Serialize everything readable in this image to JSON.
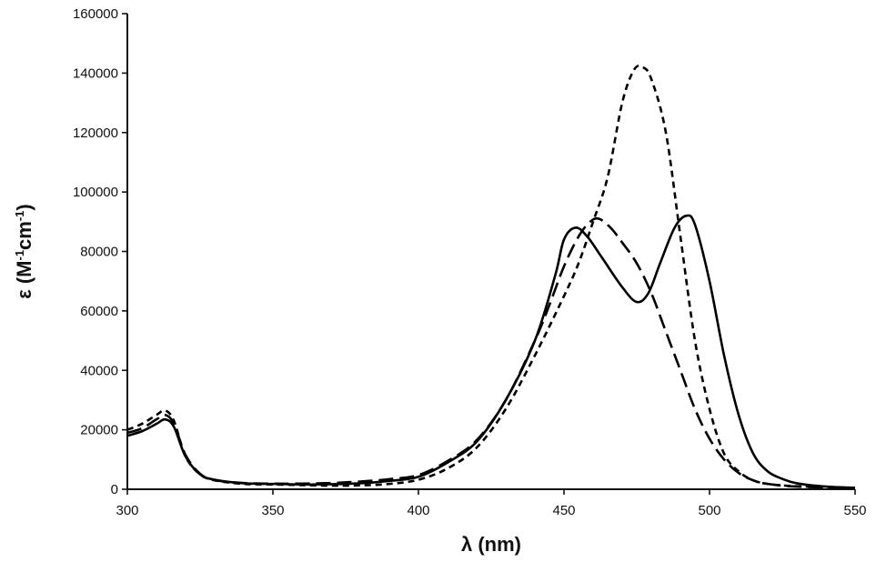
{
  "chart_data": {
    "type": "line",
    "title": "",
    "xlabel": "λ (nm)",
    "ylabel": {
      "prefix": "ε (M",
      "sup1": "-1",
      "mid": "cm",
      "sup2": "-1",
      "suffix": ")"
    },
    "xlim": [
      300,
      550
    ],
    "ylim": [
      0,
      160000
    ],
    "grid": false,
    "legend": "none",
    "x_ticks": [
      300,
      350,
      400,
      450,
      500,
      550
    ],
    "y_ticks": [
      0,
      20000,
      40000,
      60000,
      80000,
      100000,
      120000,
      140000,
      160000
    ],
    "x_tick_labels": [
      "300",
      "350",
      "400",
      "450",
      "500",
      "550"
    ],
    "y_tick_labels": [
      "0",
      "20000",
      "40000",
      "60000",
      "80000",
      "100000",
      "120000",
      "140000",
      "160000"
    ],
    "series": [
      {
        "style": "solid",
        "color": "#000000",
        "points": [
          [
            300,
            18000
          ],
          [
            305,
            19500
          ],
          [
            310,
            22000
          ],
          [
            313,
            23500
          ],
          [
            316,
            21000
          ],
          [
            320,
            11000
          ],
          [
            325,
            5000
          ],
          [
            330,
            3200
          ],
          [
            340,
            2000
          ],
          [
            350,
            1800
          ],
          [
            360,
            1600
          ],
          [
            370,
            1700
          ],
          [
            380,
            2000
          ],
          [
            390,
            2800
          ],
          [
            400,
            4200
          ],
          [
            410,
            9000
          ],
          [
            420,
            16000
          ],
          [
            430,
            30000
          ],
          [
            440,
            50000
          ],
          [
            447,
            72000
          ],
          [
            450,
            84000
          ],
          [
            454,
            88000
          ],
          [
            458,
            85000
          ],
          [
            463,
            78000
          ],
          [
            470,
            68000
          ],
          [
            475,
            63000
          ],
          [
            479,
            66000
          ],
          [
            483,
            76000
          ],
          [
            488,
            88000
          ],
          [
            492,
            92000
          ],
          [
            495,
            89000
          ],
          [
            500,
            70000
          ],
          [
            505,
            45000
          ],
          [
            510,
            25000
          ],
          [
            515,
            12000
          ],
          [
            520,
            6000
          ],
          [
            525,
            3500
          ],
          [
            530,
            2000
          ],
          [
            540,
            900
          ],
          [
            550,
            500
          ]
        ]
      },
      {
        "style": "dashed",
        "color": "#000000",
        "points": [
          [
            300,
            20000
          ],
          [
            305,
            22000
          ],
          [
            310,
            25000
          ],
          [
            313,
            26500
          ],
          [
            316,
            23000
          ],
          [
            320,
            11000
          ],
          [
            325,
            5000
          ],
          [
            330,
            3000
          ],
          [
            340,
            1800
          ],
          [
            350,
            1600
          ],
          [
            360,
            1400
          ],
          [
            370,
            1200
          ],
          [
            380,
            1300
          ],
          [
            390,
            1800
          ],
          [
            400,
            3200
          ],
          [
            410,
            7000
          ],
          [
            420,
            14000
          ],
          [
            430,
            27000
          ],
          [
            440,
            45000
          ],
          [
            450,
            65000
          ],
          [
            455,
            76000
          ],
          [
            460,
            90000
          ],
          [
            465,
            105000
          ],
          [
            470,
            130000
          ],
          [
            474,
            141000
          ],
          [
            477,
            142000
          ],
          [
            480,
            138000
          ],
          [
            485,
            120000
          ],
          [
            490,
            85000
          ],
          [
            495,
            50000
          ],
          [
            500,
            27000
          ],
          [
            505,
            12000
          ],
          [
            510,
            6000
          ],
          [
            515,
            3000
          ],
          [
            520,
            1800
          ],
          [
            530,
            1000
          ],
          [
            550,
            500
          ]
        ]
      },
      {
        "style": "long-dashed",
        "color": "#000000",
        "points": [
          [
            300,
            19000
          ],
          [
            305,
            20500
          ],
          [
            310,
            23500
          ],
          [
            313,
            25000
          ],
          [
            316,
            22000
          ],
          [
            320,
            11500
          ],
          [
            325,
            5200
          ],
          [
            330,
            3100
          ],
          [
            340,
            2100
          ],
          [
            350,
            1900
          ],
          [
            360,
            1900
          ],
          [
            370,
            2100
          ],
          [
            380,
            2600
          ],
          [
            390,
            3400
          ],
          [
            400,
            4800
          ],
          [
            410,
            9500
          ],
          [
            420,
            16500
          ],
          [
            430,
            30000
          ],
          [
            440,
            50000
          ],
          [
            445,
            62000
          ],
          [
            450,
            75000
          ],
          [
            455,
            85000
          ],
          [
            459,
            90000
          ],
          [
            462,
            91000
          ],
          [
            466,
            88000
          ],
          [
            470,
            83000
          ],
          [
            475,
            76000
          ],
          [
            480,
            66000
          ],
          [
            485,
            53000
          ],
          [
            490,
            40000
          ],
          [
            495,
            27000
          ],
          [
            500,
            17000
          ],
          [
            505,
            10000
          ],
          [
            510,
            5500
          ],
          [
            515,
            3000
          ],
          [
            520,
            1800
          ],
          [
            530,
            900
          ],
          [
            550,
            400
          ]
        ]
      }
    ]
  }
}
